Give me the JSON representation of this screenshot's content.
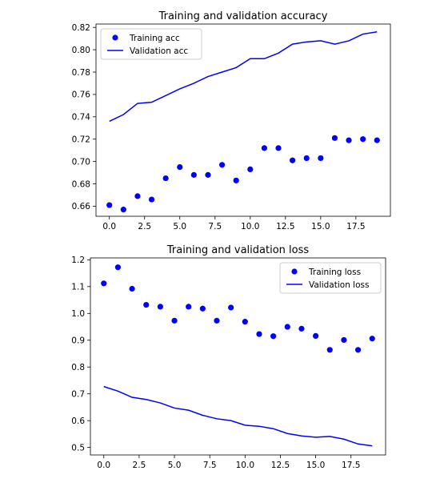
{
  "chart_data": [
    {
      "type": "scatter+line",
      "title": "Training and validation accuracy",
      "xlabel": "",
      "ylabel": "",
      "xlim": [
        -0.95,
        19.95
      ],
      "ylim": [
        0.651,
        0.823
      ],
      "x_ticks": [
        0.0,
        2.5,
        5.0,
        7.5,
        10.0,
        12.5,
        15.0,
        17.5
      ],
      "x_tick_labels": [
        "0.0",
        "2.5",
        "5.0",
        "7.5",
        "10.0",
        "12.5",
        "15.0",
        "17.5"
      ],
      "y_ticks": [
        0.66,
        0.68,
        0.7,
        0.72,
        0.74,
        0.76,
        0.78,
        0.8,
        0.82
      ],
      "y_tick_labels": [
        "0.66",
        "0.68",
        "0.70",
        "0.72",
        "0.74",
        "0.76",
        "0.78",
        "0.80",
        "0.82"
      ],
      "grid": false,
      "legend_position": "upper-left",
      "x": [
        0,
        1,
        2,
        3,
        4,
        5,
        6,
        7,
        8,
        9,
        10,
        11,
        12,
        13,
        14,
        15,
        16,
        17,
        18,
        19
      ],
      "series": [
        {
          "name": "Training acc",
          "style": "dots",
          "color": "#0000ff",
          "values": [
            0.661,
            0.657,
            0.669,
            0.666,
            0.685,
            0.695,
            0.688,
            0.688,
            0.697,
            0.683,
            0.693,
            0.712,
            0.712,
            0.701,
            0.703,
            0.703,
            0.721,
            0.719,
            0.72,
            0.719
          ]
        },
        {
          "name": "Validation acc",
          "style": "line",
          "color": "#0000ff",
          "values": [
            0.736,
            0.742,
            0.752,
            0.753,
            0.759,
            0.765,
            0.77,
            0.776,
            0.78,
            0.784,
            0.792,
            0.792,
            0.797,
            0.805,
            0.807,
            0.808,
            0.805,
            0.808,
            0.814,
            0.816
          ]
        }
      ]
    },
    {
      "type": "scatter+line",
      "title": "Training and validation loss",
      "xlabel": "",
      "ylabel": "",
      "xlim": [
        -0.95,
        19.95
      ],
      "ylim": [
        0.472,
        1.207
      ],
      "x_ticks": [
        0.0,
        2.5,
        5.0,
        7.5,
        10.0,
        12.5,
        15.0,
        17.5
      ],
      "x_tick_labels": [
        "0.0",
        "2.5",
        "5.0",
        "7.5",
        "10.0",
        "12.5",
        "15.0",
        "17.5"
      ],
      "y_ticks": [
        0.5,
        0.6,
        0.7,
        0.8,
        0.9,
        1.0,
        1.1,
        1.2
      ],
      "y_tick_labels": [
        "0.5",
        "0.6",
        "0.7",
        "0.8",
        "0.9",
        "1.0",
        "1.1",
        "1.2"
      ],
      "grid": false,
      "legend_position": "upper-right",
      "x": [
        0,
        1,
        2,
        3,
        4,
        5,
        6,
        7,
        8,
        9,
        10,
        11,
        12,
        13,
        14,
        15,
        16,
        17,
        18,
        19
      ],
      "series": [
        {
          "name": "Training loss",
          "style": "dots",
          "color": "#0000ff",
          "values": [
            1.112,
            1.172,
            1.092,
            1.032,
            1.025,
            0.973,
            1.025,
            1.018,
            0.973,
            1.022,
            0.969,
            0.923,
            0.915,
            0.95,
            0.943,
            0.916,
            0.864,
            0.901,
            0.864,
            0.906
          ]
        },
        {
          "name": "Validation loss",
          "style": "line",
          "color": "#0000ff",
          "values": [
            0.727,
            0.71,
            0.687,
            0.679,
            0.666,
            0.647,
            0.639,
            0.62,
            0.607,
            0.6,
            0.583,
            0.579,
            0.57,
            0.552,
            0.543,
            0.538,
            0.541,
            0.531,
            0.513,
            0.506
          ]
        }
      ]
    }
  ]
}
